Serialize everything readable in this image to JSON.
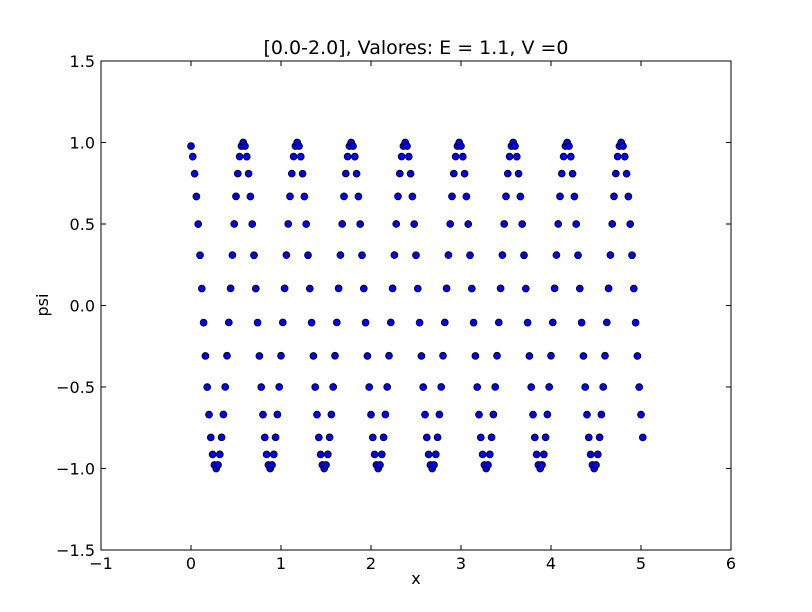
{
  "chart_data": {
    "type": "scatter",
    "title": "[0.0-2.0], Valores: E = 1.1, V =0",
    "xlabel": "x",
    "ylabel": "psi",
    "xlim": [
      -1,
      6
    ],
    "ylim": [
      -1.5,
      1.5
    ],
    "xticks": [
      -1,
      0,
      1,
      2,
      3,
      4,
      5,
      6
    ],
    "xtick_labels": [
      "−1",
      "0",
      "1",
      "2",
      "3",
      "4",
      "5",
      "6"
    ],
    "yticks": [
      -1.5,
      -1.0,
      -0.5,
      0.0,
      0.5,
      1.0,
      1.5
    ],
    "ytick_labels": [
      "−1.5",
      "−1.0",
      "−0.5",
      "0.0",
      "0.5",
      "1.0",
      "1.5"
    ],
    "grid": false,
    "legend": "none",
    "marker_color": "#0000ff",
    "marker_edge": "#000000",
    "series": [
      {
        "function": "psi = cos(2πx / 0.6 + 0.21)",
        "x_start": 0.0,
        "x_end": 5.02,
        "x_step": 0.02
      }
    ]
  }
}
